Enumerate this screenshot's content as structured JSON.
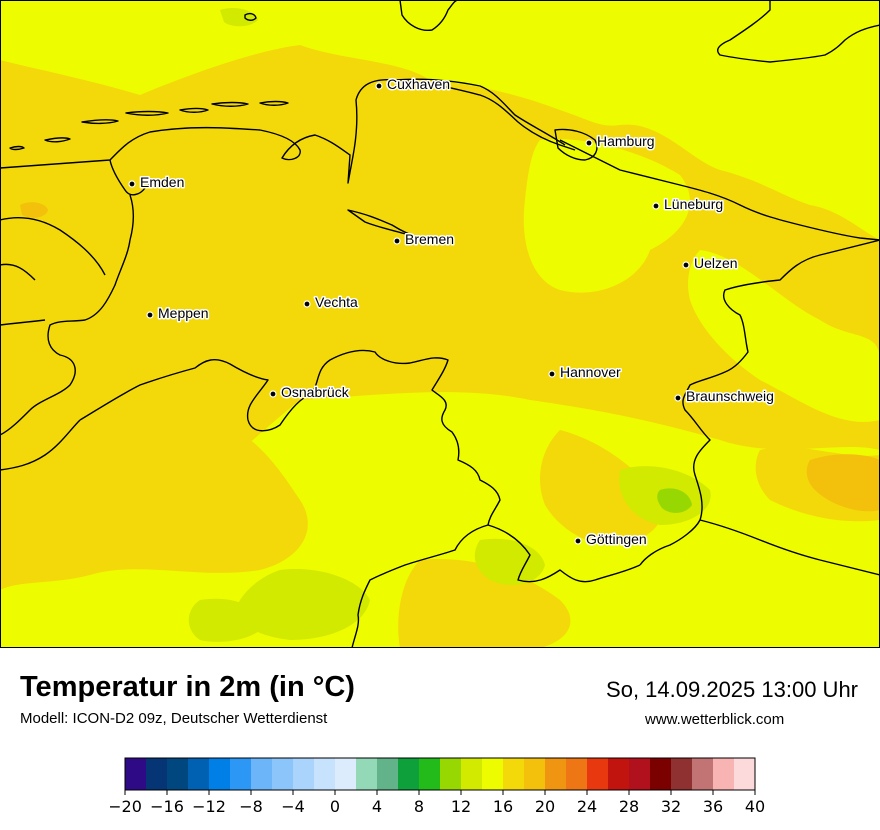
{
  "title": "Temperatur in 2m (in °C)",
  "subtitle": "Modell: ICON-D2 09z, Deutscher Wetterdienst",
  "datetime": "So, 14.09.2025 13:00 Uhr",
  "source": "www.wetterblick.com",
  "cities": [
    {
      "id": "cuxhaven",
      "name": "Cuxhaven"
    },
    {
      "id": "hamburg",
      "name": "Hamburg"
    },
    {
      "id": "emden",
      "name": "Emden"
    },
    {
      "id": "lueneburg",
      "name": "Lüneburg"
    },
    {
      "id": "bremen",
      "name": "Bremen"
    },
    {
      "id": "uelzen",
      "name": "Uelzen"
    },
    {
      "id": "vechta",
      "name": "Vechta"
    },
    {
      "id": "meppen",
      "name": "Meppen"
    },
    {
      "id": "hannover",
      "name": "Hannover"
    },
    {
      "id": "osnabrueck",
      "name": "Osnabrück"
    },
    {
      "id": "braunschweig",
      "name": "Braunschweig"
    },
    {
      "id": "goettingen",
      "name": "Göttingen"
    }
  ],
  "legend": {
    "ticks": [
      "−20",
      "−16",
      "−12",
      "−8",
      "−4",
      "0",
      "4",
      "8",
      "12",
      "16",
      "20",
      "24",
      "28",
      "32",
      "36",
      "40"
    ],
    "colors": [
      "#2e0a87",
      "#053574",
      "#00467f",
      "#0061b3",
      "#0080e6",
      "#2d97f5",
      "#6bb5f8",
      "#8cc5fa",
      "#aad4fc",
      "#c6e2fd",
      "#dcecfd",
      "#94d9b7",
      "#62b38a",
      "#0ea13b",
      "#22bb1a",
      "#97d803",
      "#d2e900",
      "#eefc00",
      "#f3d90a",
      "#f3c00c",
      "#f09511",
      "#ef7614",
      "#e8380f",
      "#c2140f",
      "#b1111c",
      "#7b0000",
      "#8f3131",
      "#c27474",
      "#f8b4b3",
      "#fcdadb"
    ]
  },
  "colors": {
    "base_warm": "#f3d90a",
    "cool_yellow": "#eefc00",
    "yellow_green": "#d2e900",
    "green": "#97d803",
    "orange": "#f3c00c"
  }
}
